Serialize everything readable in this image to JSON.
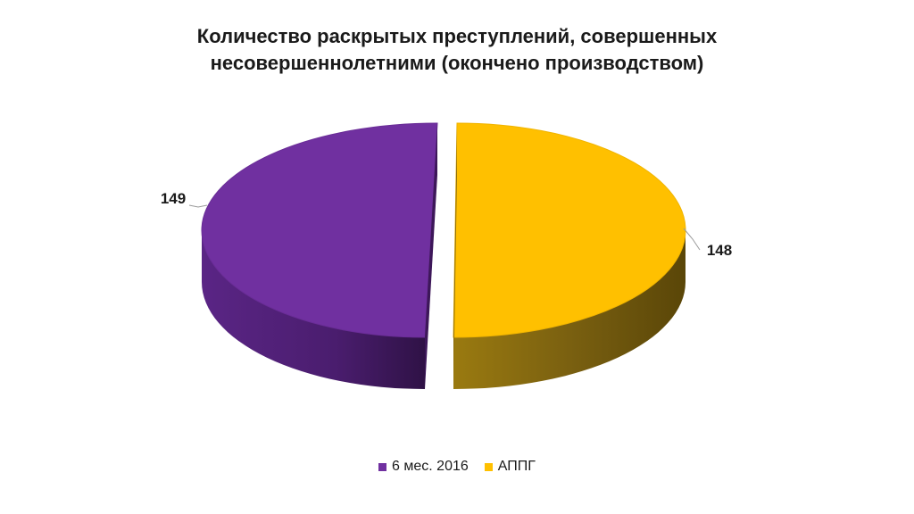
{
  "chart_data": {
    "type": "pie",
    "title_lines": [
      "Количество раскрытых преступлений, совершенных",
      "несовершеннолетними (окончено производством)"
    ],
    "slices": [
      {
        "label": "6 мес. 2016",
        "value": 149,
        "color": "#7030a0"
      },
      {
        "label": "АППГ",
        "value": 148,
        "color": "#ffc000"
      }
    ],
    "data_labels": [
      "149",
      "148"
    ],
    "legend_position": "bottom",
    "style": "3d-exploded"
  }
}
